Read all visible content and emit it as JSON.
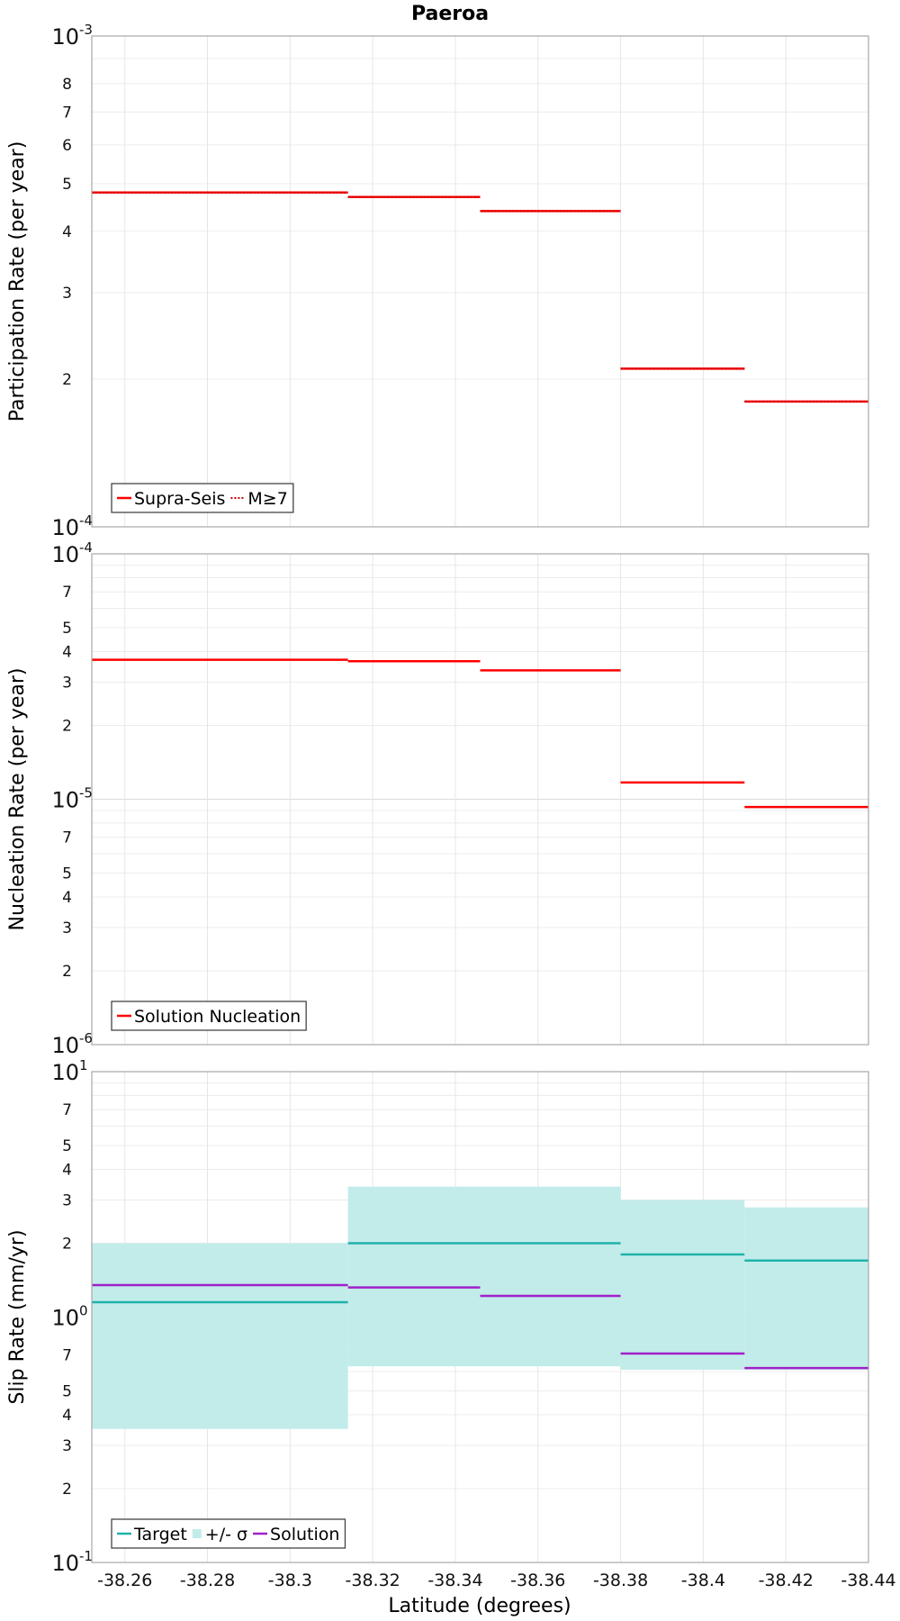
{
  "chart_data": [
    {
      "type": "line",
      "title": "Paeroa",
      "xlabel": "Latitude (degrees)",
      "ylabel": "Participation Rate (per year)",
      "yscale": "log",
      "ylim": [
        0.0001,
        0.001
      ],
      "xlim": [
        -38.252,
        -38.44
      ],
      "grid": true,
      "legend_position": "bottom-left",
      "series": [
        {
          "name": "Supra-Seis",
          "color": "#ff0000",
          "style": "solid",
          "segments": [
            {
              "x": [
                -38.252,
                -38.314
              ],
              "y": 0.00048
            },
            {
              "x": [
                -38.314,
                -38.346
              ],
              "y": 0.00047
            },
            {
              "x": [
                -38.346,
                -38.38
              ],
              "y": 0.00044
            },
            {
              "x": [
                -38.38,
                -38.41
              ],
              "y": 0.00021
            },
            {
              "x": [
                -38.41,
                -38.44
              ],
              "y": 0.00018
            }
          ]
        },
        {
          "name": "M≥7",
          "color": "#ff0000",
          "style": "dotted",
          "segments": [
            {
              "x": [
                -38.252,
                -38.314
              ],
              "y": 0.00048
            },
            {
              "x": [
                -38.314,
                -38.346
              ],
              "y": 0.00047
            },
            {
              "x": [
                -38.346,
                -38.38
              ],
              "y": 0.00044
            },
            {
              "x": [
                -38.38,
                -38.41
              ],
              "y": 0.00021
            },
            {
              "x": [
                -38.41,
                -38.44
              ],
              "y": 0.00018
            }
          ]
        }
      ]
    },
    {
      "type": "line",
      "xlabel": "Latitude (degrees)",
      "ylabel": "Nucleation Rate (per year)",
      "yscale": "log",
      "ylim": [
        1e-06,
        0.0001
      ],
      "xlim": [
        -38.252,
        -38.44
      ],
      "grid": true,
      "legend_position": "bottom-left",
      "series": [
        {
          "name": "Solution Nucleation",
          "color": "#ff0000",
          "style": "solid",
          "segments": [
            {
              "x": [
                -38.252,
                -38.314
              ],
              "y": 3.7e-05
            },
            {
              "x": [
                -38.314,
                -38.346
              ],
              "y": 3.65e-05
            },
            {
              "x": [
                -38.346,
                -38.38
              ],
              "y": 3.35e-05
            },
            {
              "x": [
                -38.38,
                -38.41
              ],
              "y": 1.17e-05
            },
            {
              "x": [
                -38.41,
                -38.44
              ],
              "y": 9.3e-06
            }
          ]
        }
      ]
    },
    {
      "type": "line",
      "xlabel": "Latitude (degrees)",
      "ylabel": "Slip Rate (mm/yr)",
      "yscale": "log",
      "ylim": [
        0.1,
        10
      ],
      "xlim": [
        -38.252,
        -38.44
      ],
      "grid": true,
      "legend_position": "bottom-left",
      "series": [
        {
          "name": "Target",
          "color": "#1fb2aa",
          "style": "solid",
          "segments": [
            {
              "x": [
                -38.252,
                -38.314
              ],
              "y": 1.15
            },
            {
              "x": [
                -38.314,
                -38.38
              ],
              "y": 2.0
            },
            {
              "x": [
                -38.38,
                -38.41
              ],
              "y": 1.8
            },
            {
              "x": [
                -38.41,
                -38.44
              ],
              "y": 1.7
            }
          ]
        },
        {
          "name": "+/- σ",
          "color": "#c2ecea",
          "style": "band",
          "segments": [
            {
              "x": [
                -38.252,
                -38.314
              ],
              "low": 0.35,
              "high": 2.0
            },
            {
              "x": [
                -38.314,
                -38.38
              ],
              "low": 0.63,
              "high": 3.4
            },
            {
              "x": [
                -38.38,
                -38.41
              ],
              "low": 0.61,
              "high": 3.0
            },
            {
              "x": [
                -38.41,
                -38.44
              ],
              "low": 0.61,
              "high": 2.8
            }
          ]
        },
        {
          "name": "Solution",
          "color": "#a020c8",
          "style": "solid",
          "segments": [
            {
              "x": [
                -38.252,
                -38.314
              ],
              "y": 1.35
            },
            {
              "x": [
                -38.314,
                -38.346
              ],
              "y": 1.32
            },
            {
              "x": [
                -38.346,
                -38.38
              ],
              "y": 1.22
            },
            {
              "x": [
                -38.38,
                -38.41
              ],
              "y": 0.71
            },
            {
              "x": [
                -38.41,
                -38.44
              ],
              "y": 0.62
            }
          ]
        }
      ]
    }
  ],
  "x_ticks": [
    "-38.26",
    "-38.28",
    "-38.3",
    "-38.32",
    "-38.34",
    "-38.36",
    "-38.38",
    "-38.4",
    "-38.42",
    "-38.44"
  ],
  "y_ticks": [
    {
      "decade_labels": [
        [
          "10",
          "-3"
        ],
        [
          "10",
          "-4"
        ]
      ],
      "minor_labels": [
        "8",
        "7",
        "6",
        "5",
        "4",
        "3",
        "2"
      ]
    },
    {
      "decade_labels": [
        [
          "10",
          "-4"
        ],
        [
          "10",
          "-5"
        ],
        [
          "10",
          "-6"
        ]
      ],
      "minor_labels": [
        "7",
        "5",
        "4",
        "3",
        "2",
        "7",
        "5",
        "4",
        "3",
        "2"
      ]
    },
    {
      "decade_labels": [
        [
          "10",
          "1"
        ],
        [
          "10",
          "0"
        ],
        [
          "10",
          "-1"
        ]
      ],
      "minor_labels": [
        "7",
        "5",
        "4",
        "3",
        "2",
        "7",
        "5",
        "4",
        "3",
        "2"
      ]
    }
  ]
}
